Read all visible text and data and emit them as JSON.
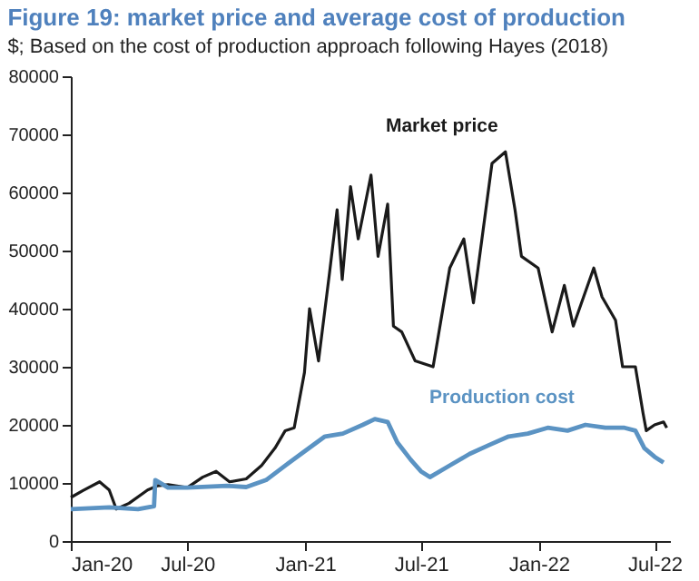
{
  "chart_data": {
    "type": "line",
    "title": "Figure 19: market price and average cost of production",
    "subtitle": "$; Based on the cost of production approach following Hayes (2018)",
    "xlim": [
      "2020-01-01",
      "2022-07-25"
    ],
    "xticks": [
      {
        "value": "2020-01-01",
        "label": "Jan-20"
      },
      {
        "value": "2020-07-01",
        "label": "Jul-20"
      },
      {
        "value": "2021-01-01",
        "label": "Jan-21"
      },
      {
        "value": "2021-07-01",
        "label": "Jul-21"
      },
      {
        "value": "2022-01-01",
        "label": "Jan-22"
      },
      {
        "value": "2022-07-01",
        "label": "Jul-22"
      }
    ],
    "ylim": [
      0,
      80000
    ],
    "yticks": [
      0,
      10000,
      20000,
      30000,
      40000,
      50000,
      60000,
      70000,
      80000
    ],
    "grid": false,
    "series": [
      {
        "name": "Market price",
        "color": "#1a1a1a",
        "x": [
          "2020-01-01",
          "2020-01-20",
          "2020-02-15",
          "2020-03-01",
          "2020-03-12",
          "2020-04-01",
          "2020-04-30",
          "2020-05-15",
          "2020-06-01",
          "2020-07-01",
          "2020-07-25",
          "2020-08-15",
          "2020-09-05",
          "2020-10-01",
          "2020-10-25",
          "2020-11-15",
          "2020-12-01",
          "2020-12-15",
          "2020-12-31",
          "2021-01-08",
          "2021-01-22",
          "2021-02-08",
          "2021-02-20",
          "2021-02-28",
          "2021-03-13",
          "2021-03-25",
          "2021-04-14",
          "2021-04-25",
          "2021-05-10",
          "2021-05-19",
          "2021-06-01",
          "2021-06-22",
          "2021-07-20",
          "2021-08-15",
          "2021-09-06",
          "2021-09-21",
          "2021-10-20",
          "2021-11-10",
          "2021-11-25",
          "2021-12-05",
          "2021-12-31",
          "2022-01-22",
          "2022-02-10",
          "2022-02-24",
          "2022-03-28",
          "2022-04-10",
          "2022-05-01",
          "2022-05-12",
          "2022-06-01",
          "2022-06-13",
          "2022-06-18",
          "2022-07-01",
          "2022-07-15",
          "2022-07-20"
        ],
        "values": [
          7500,
          8700,
          10200,
          8800,
          5500,
          6500,
          8800,
          9500,
          9700,
          9200,
          11000,
          12000,
          10200,
          10700,
          13000,
          16000,
          19000,
          19500,
          29000,
          40000,
          31000,
          46000,
          57000,
          45000,
          61000,
          52000,
          63000,
          49000,
          58000,
          37000,
          36000,
          31000,
          30000,
          47000,
          52000,
          41000,
          65000,
          67000,
          57000,
          49000,
          47000,
          36000,
          44000,
          37000,
          47000,
          42000,
          38000,
          30000,
          30000,
          22000,
          19000,
          20000,
          20500,
          19500
        ]
      },
      {
        "name": "Production cost",
        "color": "#5b93c3",
        "x": [
          "2020-01-01",
          "2020-03-01",
          "2020-04-15",
          "2020-05-10",
          "2020-05-12",
          "2020-06-01",
          "2020-07-01",
          "2020-09-01",
          "2020-10-01",
          "2020-11-01",
          "2020-12-01",
          "2021-01-01",
          "2021-02-01",
          "2021-03-01",
          "2021-04-01",
          "2021-04-20",
          "2021-05-10",
          "2021-05-25",
          "2021-06-15",
          "2021-07-01",
          "2021-07-15",
          "2021-08-15",
          "2021-09-15",
          "2021-10-15",
          "2021-11-15",
          "2021-12-15",
          "2022-01-15",
          "2022-02-15",
          "2022-03-15",
          "2022-04-15",
          "2022-05-15",
          "2022-06-01",
          "2022-06-15",
          "2022-07-01",
          "2022-07-15"
        ],
        "values": [
          5500,
          5800,
          5500,
          6000,
          10500,
          9200,
          9200,
          9500,
          9300,
          10500,
          13000,
          15500,
          18000,
          18500,
          20000,
          21000,
          20500,
          17000,
          14000,
          12000,
          11000,
          13000,
          15000,
          16500,
          18000,
          18500,
          19500,
          19000,
          20000,
          19500,
          19500,
          19000,
          16000,
          14500,
          13500
        ]
      }
    ]
  }
}
